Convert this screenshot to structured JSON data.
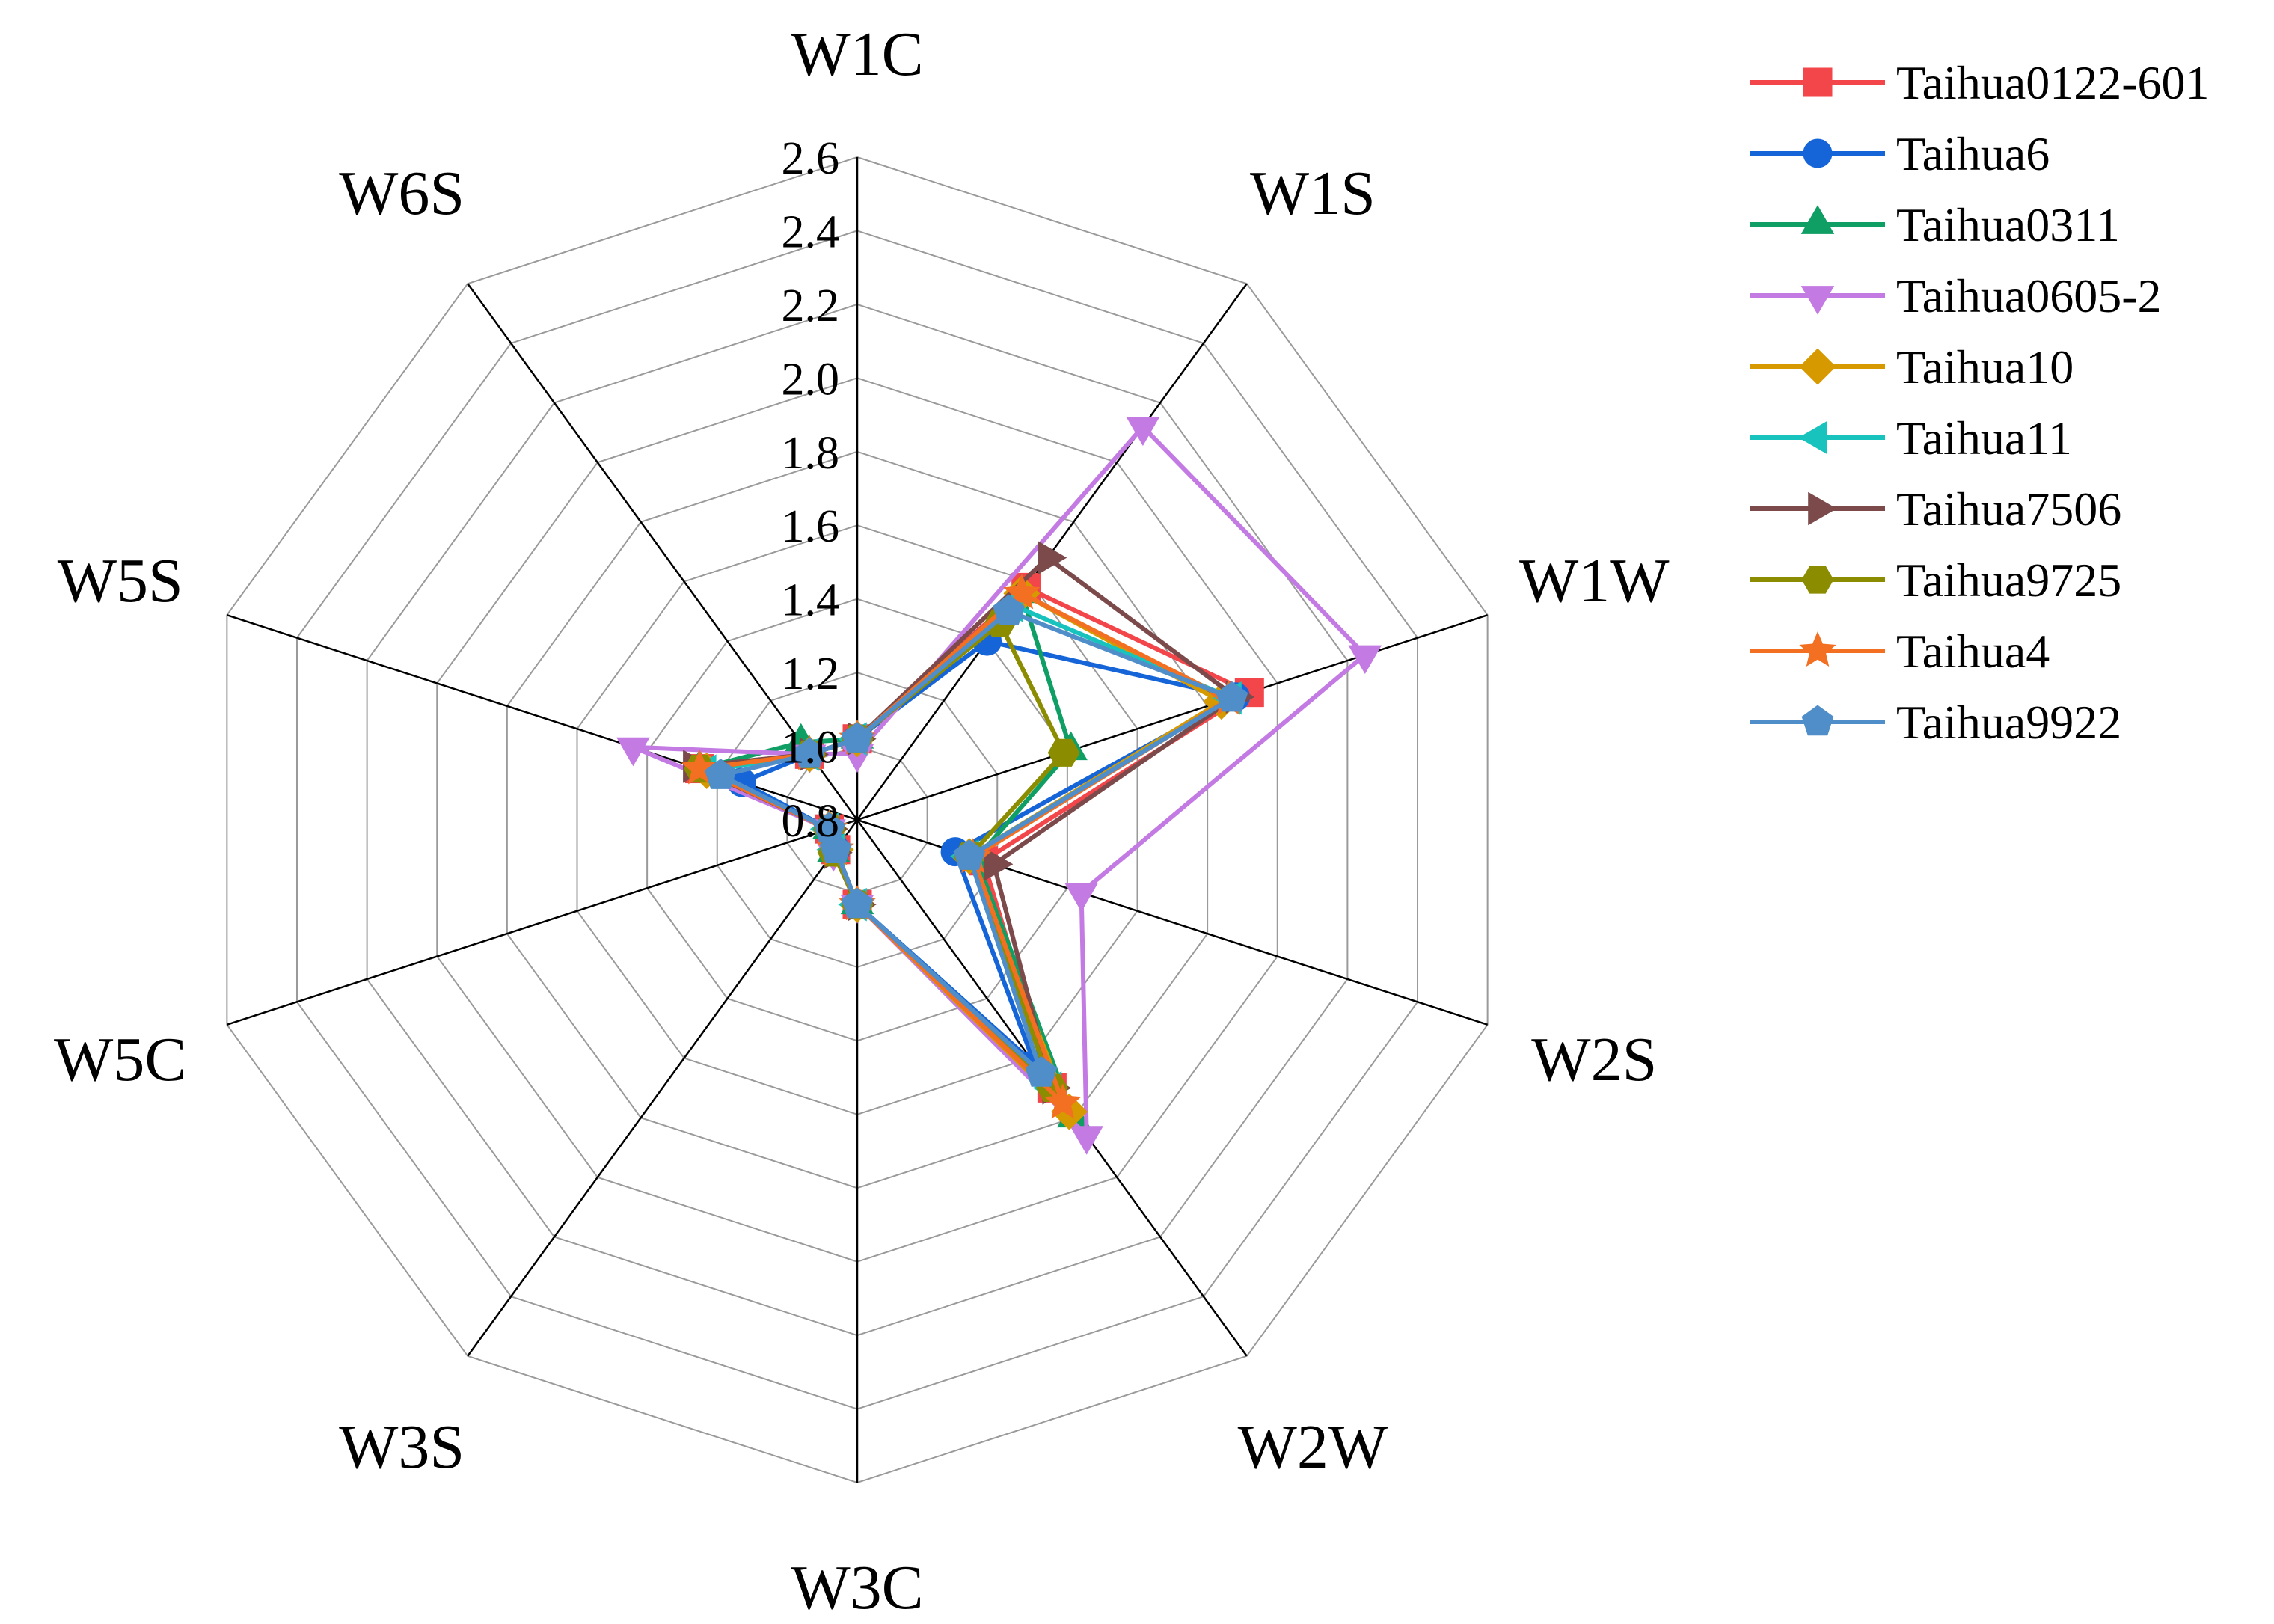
{
  "chart_data": {
    "type": "radar",
    "title": "",
    "axes": [
      "W1C",
      "W1S",
      "W1W",
      "W2S",
      "W2W",
      "W3C",
      "W3S",
      "W5C",
      "W5S",
      "W6S"
    ],
    "ticks": [
      "0.8",
      "1.0",
      "1.2",
      "1.4",
      "1.6",
      "1.8",
      "2.0",
      "2.2",
      "2.4",
      "2.6"
    ],
    "range": [
      0.8,
      2.6
    ],
    "grid": true,
    "legend_position": "top-right",
    "series": [
      {
        "name": "Taihua0122-601",
        "color": "#f2464a",
        "marker": "square",
        "values": [
          1.02,
          1.58,
          1.92,
          1.16,
          1.7,
          1.03,
          0.9,
          0.88,
          1.25,
          1.02
        ]
      },
      {
        "name": "Taihua6",
        "color": "#1565d8",
        "marker": "circle",
        "values": [
          1.02,
          1.4,
          1.88,
          1.08,
          1.62,
          1.03,
          0.9,
          0.88,
          1.13,
          1.02
        ]
      },
      {
        "name": "Taihua0311",
        "color": "#0f9e64",
        "marker": "triangle-up",
        "values": [
          1.02,
          1.56,
          1.41,
          1.14,
          1.8,
          1.03,
          0.91,
          0.88,
          1.25,
          1.06
        ]
      },
      {
        "name": "Taihua0605-2",
        "color": "#c37ae3",
        "marker": "triangle-down",
        "values": [
          0.98,
          2.12,
          2.25,
          1.44,
          1.86,
          1.03,
          0.91,
          0.88,
          1.44,
          1.02
        ]
      },
      {
        "name": "Taihua10",
        "color": "#d69a00",
        "marker": "diamond",
        "values": [
          1.02,
          1.56,
          1.84,
          1.12,
          1.78,
          1.03,
          0.9,
          0.88,
          1.23,
          1.02
        ]
      },
      {
        "name": "Taihua11",
        "color": "#18c3bd",
        "marker": "triangle-left",
        "values": [
          1.02,
          1.52,
          1.87,
          1.12,
          1.7,
          1.03,
          0.9,
          0.88,
          1.23,
          1.02
        ]
      },
      {
        "name": "Taihua7506",
        "color": "#7c4a4a",
        "marker": "triangle-right",
        "values": [
          1.02,
          1.68,
          1.88,
          1.19,
          1.7,
          1.03,
          0.91,
          0.88,
          1.27,
          1.02
        ]
      },
      {
        "name": "Taihua9725",
        "color": "#8c8c00",
        "marker": "hexagon",
        "values": [
          1.02,
          1.46,
          1.39,
          1.12,
          1.7,
          1.03,
          0.91,
          0.88,
          1.25,
          1.02
        ]
      },
      {
        "name": "Taihua4",
        "color": "#f36f21",
        "marker": "star",
        "values": [
          1.02,
          1.56,
          1.86,
          1.13,
          1.75,
          1.03,
          0.9,
          0.88,
          1.25,
          1.02
        ]
      },
      {
        "name": "Taihua9922",
        "color": "#4f8ec9",
        "marker": "pentagon",
        "values": [
          1.02,
          1.5,
          1.87,
          1.12,
          1.65,
          1.03,
          0.9,
          0.88,
          1.19,
          1.02
        ]
      }
    ]
  }
}
